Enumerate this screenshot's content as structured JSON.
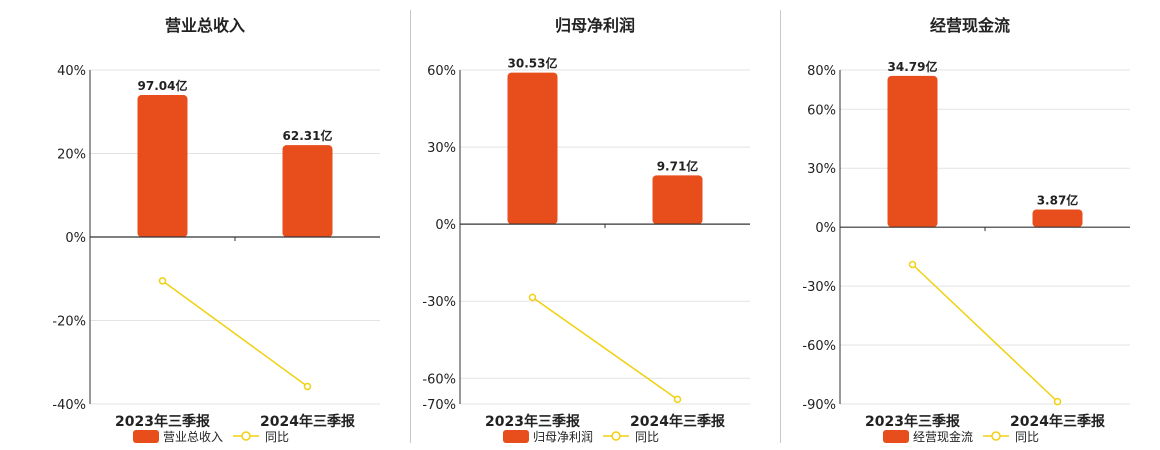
{
  "colors": {
    "bar": "#E84D1C",
    "line": "#F0D010",
    "grid": "#e3e3e3",
    "axis": "#333333"
  },
  "chart_data": [
    {
      "type": "bar",
      "title": "营业总收入",
      "categories": [
        "2023年三季报",
        "2024年三季报"
      ],
      "ylim": [
        -40,
        40
      ],
      "yticks": [
        40,
        20,
        0,
        -20,
        -40
      ],
      "ytick_labels": [
        "40%",
        "20%",
        "0%",
        "-20%",
        "-40%"
      ],
      "series": [
        {
          "name": "营业总收入",
          "kind": "bar",
          "values": [
            34,
            22
          ],
          "labels": [
            "97.04亿",
            "62.31亿"
          ]
        },
        {
          "name": "同比",
          "kind": "line",
          "values": [
            -10.5,
            -35.8
          ]
        }
      ],
      "legend_position": "bottom"
    },
    {
      "type": "bar",
      "title": "归母净利润",
      "categories": [
        "2023年三季报",
        "2024年三季报"
      ],
      "ylim": [
        -70,
        60
      ],
      "yticks": [
        60,
        30,
        0,
        -30,
        -60,
        -70
      ],
      "ytick_labels": [
        "60%",
        "30%",
        "0%",
        "-30%",
        "-60%",
        "-70%"
      ],
      "series": [
        {
          "name": "归母净利润",
          "kind": "bar",
          "values": [
            59,
            19
          ],
          "labels": [
            "30.53亿",
            "9.71亿"
          ]
        },
        {
          "name": "同比",
          "kind": "line",
          "values": [
            -28.5,
            -68.2
          ]
        }
      ],
      "legend_position": "bottom"
    },
    {
      "type": "bar",
      "title": "经营现金流",
      "categories": [
        "2023年三季报",
        "2024年三季报"
      ],
      "ylim": [
        -90,
        80
      ],
      "yticks": [
        80,
        60,
        30,
        0,
        -30,
        -60,
        -90
      ],
      "ytick_labels": [
        "80%",
        "60%",
        "30%",
        "0%",
        "-30%",
        "-60%",
        "-90%"
      ],
      "series": [
        {
          "name": "经营现金流",
          "kind": "bar",
          "values": [
            77,
            9
          ],
          "labels": [
            "34.79亿",
            "3.87亿"
          ]
        },
        {
          "name": "同比",
          "kind": "line",
          "values": [
            -19,
            -88.8
          ]
        }
      ],
      "legend_position": "bottom"
    }
  ]
}
